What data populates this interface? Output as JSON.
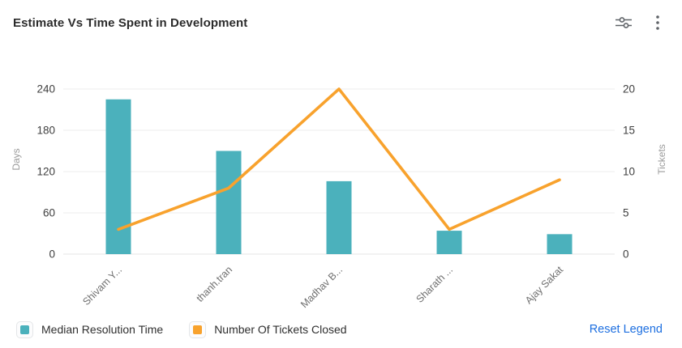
{
  "header": {
    "title": "Estimate Vs Time Spent in Development",
    "icons": [
      {
        "name": "settings-sliders-icon"
      },
      {
        "name": "kebab-menu-icon"
      }
    ],
    "icon_color": "#5f6368"
  },
  "chart_data": {
    "type": "bar",
    "subtype": "combo-bar-line",
    "title": "Estimate Vs Time Spent in Development",
    "categories": [
      "Shivam Y...",
      "thanh.tran",
      "Madhav B...",
      "Sharath ...",
      "Ajay Sakat"
    ],
    "series": [
      {
        "name": "Median Resolution Time",
        "type": "bar",
        "axis": "left",
        "color": "#4bb1bc",
        "values": [
          225,
          150,
          106,
          34,
          29
        ]
      },
      {
        "name": "Number Of Tickets Closed",
        "type": "line",
        "axis": "right",
        "color": "#f8a22d",
        "values": [
          3,
          8,
          20,
          3,
          9
        ]
      }
    ],
    "left_axis": {
      "label": "Days",
      "ticks": [
        0,
        60,
        120,
        180,
        240
      ],
      "min": 0,
      "max": 240
    },
    "right_axis": {
      "label": "Tickets",
      "ticks": [
        0,
        5,
        10,
        15,
        20
      ],
      "min": 0,
      "max": 20
    },
    "grid": true,
    "grid_color": "#ededed",
    "tick_label_color": "#3f3f3f",
    "category_label_color": "#707070",
    "axis_name_color": "#9b9b9b",
    "legend_position": "bottom"
  },
  "legend": {
    "items": [
      {
        "label": "Median Resolution Time",
        "color": "#4bb1bc"
      },
      {
        "label": "Number Of Tickets Closed",
        "color": "#f8a22d"
      }
    ],
    "reset_label": "Reset Legend",
    "reset_color": "#1d6fe0"
  }
}
